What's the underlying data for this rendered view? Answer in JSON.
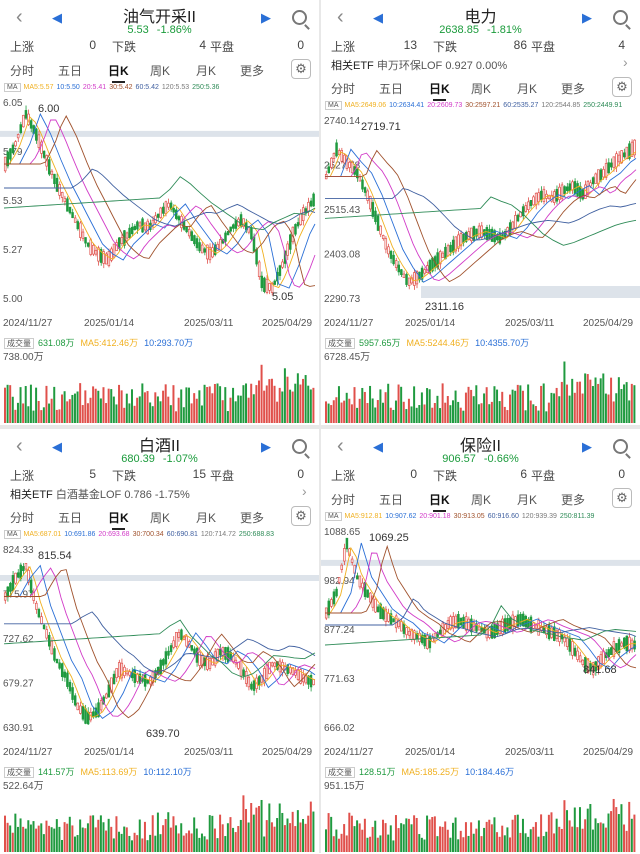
{
  "colors": {
    "up": "#e0504b",
    "down": "#1f9a3f",
    "ma5": "#f0b020",
    "ma10": "#2a6fd6",
    "ma20": "#d23cc8",
    "ma30": "#a0522d",
    "ma60": "#4060a0",
    "ma120": "#7a7a7a",
    "ma250": "#2e8b57",
    "band": "#dde3ea"
  },
  "icons": {
    "back": "chevron-left-icon",
    "prev": "triangle-left-icon",
    "next": "triangle-right-icon",
    "search": "search-icon",
    "settings": "gear-icon",
    "expand": "chevron-right-icon"
  },
  "tabs": [
    "分时",
    "五日",
    "日K",
    "周K",
    "月K",
    "更多"
  ],
  "stat_labels": {
    "up": "上涨",
    "down": "下跌",
    "flat": "平盘"
  },
  "etf_label": "相关ETF",
  "ma_label": "MA",
  "vol_label": "成交量",
  "panels": [
    {
      "title": "油气开采II",
      "price": "5.53",
      "change": "-1.86%",
      "up": "0",
      "down": "4",
      "flat": "0",
      "etf": null,
      "ma": [
        "MA5:5.57",
        "10:5.50",
        "20:5.41",
        "30:5.42",
        "60:5.42",
        "120:5.53",
        "250:5.36"
      ],
      "ma_single_line": true,
      "price_axis": [
        "6.05",
        "5.79",
        "5.53",
        "5.27",
        "5.00"
      ],
      "annotations": {
        "high": "6.00",
        "low": "5.05"
      },
      "dates": [
        "2024/11/27",
        "2025/01/14",
        "2025/03/11",
        "2025/04/29"
      ],
      "vol": {
        "value": "631.08万",
        "ma5": "MA5:412.46万",
        "ma10": "10:293.70万",
        "max": "738.00万"
      }
    },
    {
      "title": "电力",
      "price": "2638.85",
      "change": "-1.81%",
      "up": "13",
      "down": "86",
      "flat": "4",
      "etf": {
        "name": "申万环保LOF",
        "value": "0.927",
        "change": "0.00%"
      },
      "ma": [
        "MA5:2649.06",
        "10:2634.41",
        "20:2609.73",
        "30:2597.21",
        "60:2535.27",
        "120:2544.85",
        "250:2449.91"
      ],
      "price_axis": [
        "2740.14",
        "2627.78",
        "2515.43",
        "2403.08",
        "2290.73"
      ],
      "annotations": {
        "high": "2719.71",
        "low": "2311.16"
      },
      "dates": [
        "2024/11/27",
        "2025/01/14",
        "2025/03/11",
        "2025/04/29"
      ],
      "vol": {
        "value": "5957.65万",
        "ma5": "MA5:5244.46万",
        "ma10": "10:4355.70万",
        "max": "6728.45万"
      }
    },
    {
      "title": "白酒II",
      "price": "680.39",
      "change": "-1.07%",
      "up": "5",
      "down": "15",
      "flat": "0",
      "etf": {
        "name": "白酒基金LOF",
        "value": "0.786",
        "change": "-1.75%"
      },
      "ma": [
        "MA5:687.01",
        "10:691.86",
        "20:693.68",
        "30:700.34",
        "60:690.81",
        "120:714.72",
        "250:688.83"
      ],
      "price_axis": [
        "824.33",
        "775.97",
        "727.62",
        "679.27",
        "630.91"
      ],
      "annotations": {
        "high": "815.54",
        "low": "639.70"
      },
      "dates": [
        "2024/11/27",
        "2025/01/14",
        "2025/03/11",
        "2025/04/29"
      ],
      "vol": {
        "value": "141.57万",
        "ma5": "MA5:113.69万",
        "ma10": "10:112.10万",
        "max": "522.64万"
      }
    },
    {
      "title": "保险II",
      "price": "906.57",
      "change": "-0.66%",
      "up": "0",
      "down": "6",
      "flat": "0",
      "etf": null,
      "ma": [
        "MA5:912.81",
        "10:907.62",
        "20:901.18",
        "30:913.05",
        "60:916.60",
        "120:939.39",
        "250:811.39"
      ],
      "ma_single_line": true,
      "price_axis": [
        "1088.65",
        "982.94",
        "877.24",
        "771.63",
        "666.02"
      ],
      "annotations": {
        "high": "1069.25",
        "low": "841.68"
      },
      "dates": [
        "2024/11/27",
        "2025/01/14",
        "2025/03/11",
        "2025/04/29"
      ],
      "vol": {
        "value": "128.51万",
        "ma5": "MA5:185.25万",
        "ma10": "10:184.46万",
        "max": "951.15万"
      }
    }
  ],
  "chart_data": [
    {
      "type": "line",
      "title": "油气开采II",
      "x": [
        "2024/11/27",
        "2025/01/14",
        "2025/03/11",
        "2025/04/29"
      ],
      "ylim": [
        5.0,
        6.05
      ],
      "series": [
        {
          "name": "MA5",
          "values": [
            5.85,
            5.3,
            5.45,
            5.57
          ]
        }
      ]
    },
    {
      "type": "line",
      "title": "电力",
      "x": [
        "2024/11/27",
        "2025/01/14",
        "2025/03/11",
        "2025/04/29"
      ],
      "ylim": [
        2290.73,
        2740.14
      ],
      "series": [
        {
          "name": "MA5",
          "values": [
            2620,
            2420,
            2480,
            2649.06
          ]
        }
      ]
    },
    {
      "type": "line",
      "title": "白酒II",
      "x": [
        "2024/11/27",
        "2025/01/14",
        "2025/03/11",
        "2025/04/29"
      ],
      "ylim": [
        630.91,
        824.33
      ],
      "series": [
        {
          "name": "MA5",
          "values": [
            790,
            660,
            705,
            687.01
          ]
        }
      ]
    },
    {
      "type": "line",
      "title": "保险II",
      "x": [
        "2024/11/27",
        "2025/01/14",
        "2025/03/11",
        "2025/04/29"
      ],
      "ylim": [
        666.02,
        1088.65
      ],
      "series": [
        {
          "name": "MA5",
          "values": [
            980,
            900,
            925,
            912.81
          ]
        }
      ]
    }
  ]
}
